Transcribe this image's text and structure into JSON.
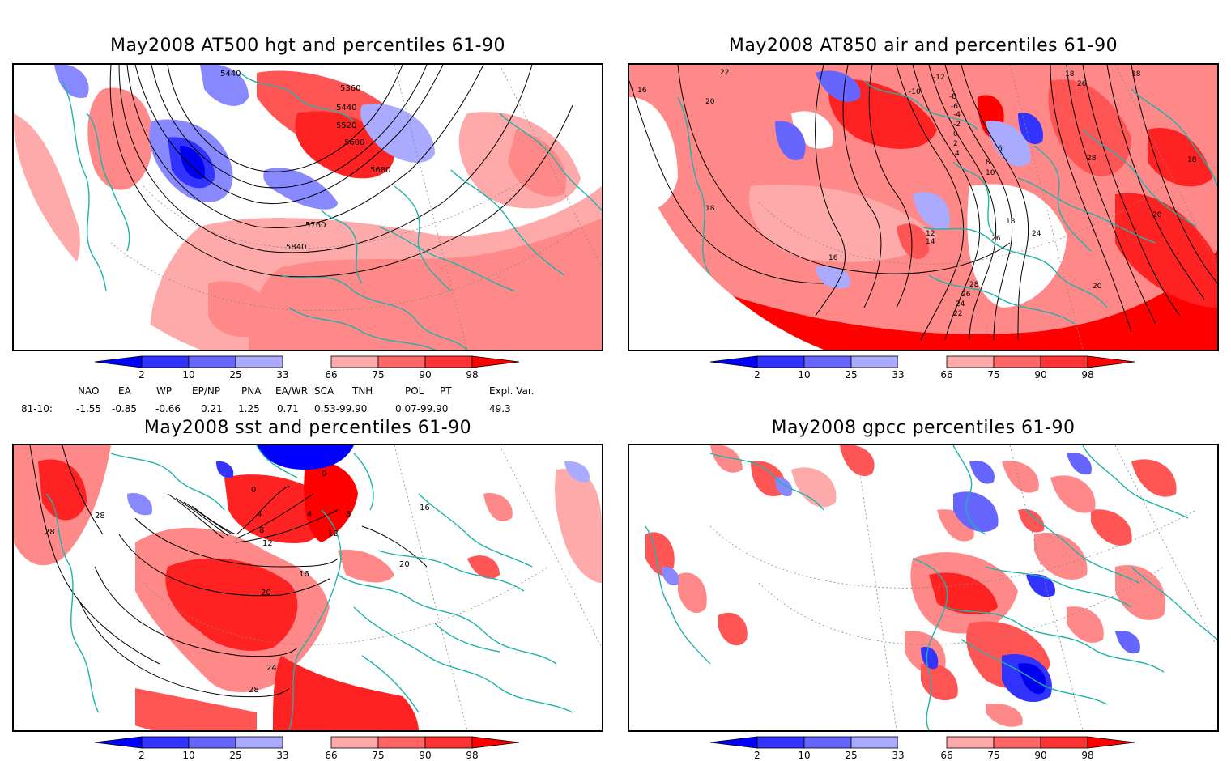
{
  "panels": [
    {
      "title": "May2008 AT500 hgt and percentiles 61-90",
      "contour_labels": [
        "5440",
        "5360",
        "5440",
        "5520",
        "5600",
        "5680",
        "5760",
        "5840"
      ]
    },
    {
      "title": "May2008 AT850 air and percentiles 61-90",
      "contour_labels": [
        "22",
        "16",
        "20",
        "18",
        "-12",
        "-10",
        "-8",
        "-6",
        "-4",
        "-2",
        "0",
        "2",
        "4",
        "6",
        "8",
        "10",
        "12",
        "14",
        "16",
        "18",
        "24",
        "26",
        "28",
        "26",
        "24",
        "22",
        "20",
        "20",
        "18",
        "18",
        "26",
        "28",
        "18"
      ]
    },
    {
      "title": "May2008 sst and percentiles 61-90",
      "contour_labels": [
        "28",
        "28",
        "0",
        "0",
        "4",
        "4",
        "8",
        "8",
        "12",
        "12",
        "16",
        "16",
        "20",
        "20",
        "24",
        "28"
      ]
    },
    {
      "title": "May2008 gpcc percentiles 61-90",
      "contour_labels": []
    }
  ],
  "colorbar": {
    "ticks": [
      "2",
      "10",
      "25",
      "33",
      "66",
      "75",
      "90",
      "98"
    ],
    "colors": [
      "#0000ff",
      "#3333ff",
      "#6666ff",
      "#aaaaff",
      "#ffffff",
      "#ffaaaa",
      "#ff6666",
      "#ff3333",
      "#ff0000"
    ]
  },
  "indices": {
    "row_label": "81-10:",
    "headers": [
      "NAO",
      "EA",
      "WP",
      "EP/NP",
      "PNA",
      "EA/WR",
      "SCA",
      "TNH",
      "POL",
      "PT",
      "Expl. Var."
    ],
    "values": [
      "-1.55",
      "-0.85",
      "-0.66",
      "0.21",
      "1.25",
      "0.71",
      "0.53-99.90",
      "0.07-99.90",
      "49.3"
    ]
  },
  "map_colors": {
    "coast": "#20b2aa",
    "contour": "#000000",
    "grid": "#888888"
  }
}
